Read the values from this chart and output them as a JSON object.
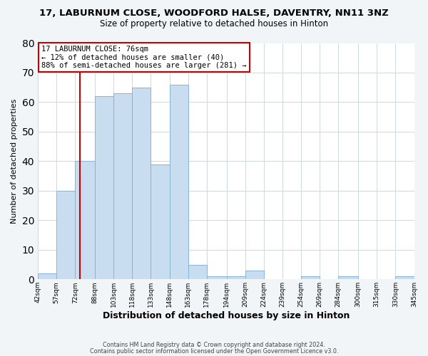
{
  "title": "17, LABURNUM CLOSE, WOODFORD HALSE, DAVENTRY, NN11 3NZ",
  "subtitle": "Size of property relative to detached houses in Hinton",
  "xlabel": "Distribution of detached houses by size in Hinton",
  "ylabel": "Number of detached properties",
  "bin_edges": [
    42,
    57,
    72,
    88,
    103,
    118,
    133,
    148,
    163,
    178,
    194,
    209,
    224,
    239,
    254,
    269,
    284,
    300,
    315,
    330,
    345
  ],
  "bin_labels": [
    "42sqm",
    "57sqm",
    "72sqm",
    "88sqm",
    "103sqm",
    "118sqm",
    "133sqm",
    "148sqm",
    "163sqm",
    "178sqm",
    "194sqm",
    "209sqm",
    "224sqm",
    "239sqm",
    "254sqm",
    "269sqm",
    "284sqm",
    "300sqm",
    "315sqm",
    "330sqm",
    "345sqm"
  ],
  "counts": [
    2,
    30,
    40,
    62,
    63,
    65,
    39,
    66,
    5,
    1,
    1,
    3,
    0,
    0,
    1,
    0,
    1,
    0,
    0,
    1
  ],
  "bar_color": "#c8ddf0",
  "bar_edgecolor": "#8ab4d4",
  "vline_x": 76,
  "vline_color": "#cc0000",
  "ylim": [
    0,
    80
  ],
  "yticks": [
    0,
    10,
    20,
    30,
    40,
    50,
    60,
    70,
    80
  ],
  "annotation_title": "17 LABURNUM CLOSE: 76sqm",
  "annotation_line1": "← 12% of detached houses are smaller (40)",
  "annotation_line2": "88% of semi-detached houses are larger (281) →",
  "annotation_box_color": "#ffffff",
  "annotation_box_edgecolor": "#cc0000",
  "footer1": "Contains HM Land Registry data © Crown copyright and database right 2024.",
  "footer2": "Contains public sector information licensed under the Open Government Licence v3.0.",
  "bg_color": "#f2f5f8",
  "plot_bg_color": "#ffffff",
  "grid_color": "#d0d8e0"
}
